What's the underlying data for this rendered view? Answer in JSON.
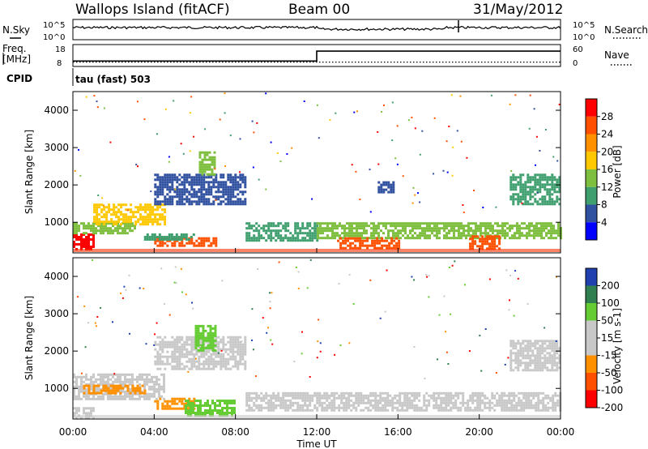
{
  "header": {
    "station": "Wallops Island (fitACF)",
    "beam": "Beam 00",
    "date": "31/May/2012"
  },
  "noise_panel": {
    "left_label": "N.Sky",
    "right_label": "N.Search",
    "left_ticks": [
      "10^5",
      "10^0"
    ],
    "right_ticks": [
      "10^5",
      "10^0"
    ]
  },
  "freq_panel": {
    "left_label_1": "Freq.",
    "left_label_2": "[MHz]",
    "right_label": "Nave",
    "left_ticks": [
      "18",
      "8"
    ],
    "right_ticks": [
      "60",
      "0"
    ],
    "freq_series": {
      "x_hours": [
        0,
        12,
        12,
        24
      ],
      "y_mhz": [
        10.5,
        10.5,
        15.0,
        15.0
      ]
    },
    "nave_series": {
      "x_hours": [
        0,
        24
      ],
      "y": [
        12,
        12
      ]
    }
  },
  "cpid": {
    "label": "CPID",
    "value": "tau (fast) 503"
  },
  "chart_data": [
    {
      "type": "heatmap",
      "name": "Power",
      "xlabel": "Time UT",
      "ylabel": "Slant Range [km]",
      "colorbar_label": "Power [dB]",
      "colorbar_ticks": [
        "28",
        "24",
        "20",
        "16",
        "12",
        "8",
        "4"
      ],
      "colorbar_colors": [
        "#ff0000",
        "#ff5000",
        "#ff9000",
        "#ffc800",
        "#7fbf3f",
        "#3f9f6f",
        "#3050a0",
        "#0000ff"
      ],
      "xlim_hours": [
        0,
        24
      ],
      "ylim_km": [
        180,
        4500
      ],
      "x_ticks": [
        "00:00",
        "04:00",
        "08:00",
        "12:00",
        "16:00",
        "20:00",
        "00:00"
      ],
      "y_ticks": [
        1000,
        2000,
        3000,
        4000
      ],
      "echo_regions": [
        {
          "t0": 0.0,
          "t1": 1.0,
          "r0": 250,
          "r1": 700,
          "level": 0
        },
        {
          "t0": 0.0,
          "t1": 3.0,
          "r0": 700,
          "r1": 1000,
          "level": 4
        },
        {
          "t0": 1.0,
          "t1": 4.5,
          "r0": 950,
          "r1": 1500,
          "level": 3
        },
        {
          "t0": 4.0,
          "t1": 7.0,
          "r0": 350,
          "r1": 600,
          "level": 1
        },
        {
          "t0": 3.5,
          "t1": 6.0,
          "r0": 550,
          "r1": 700,
          "level": 5
        },
        {
          "t0": 4.0,
          "t1": 8.5,
          "r0": 1500,
          "r1": 2300,
          "level": 6
        },
        {
          "t0": 6.2,
          "t1": 7.0,
          "r0": 2300,
          "r1": 2900,
          "level": 4
        },
        {
          "t0": 8.5,
          "t1": 12.0,
          "r0": 500,
          "r1": 1000,
          "level": 5
        },
        {
          "t0": 12.0,
          "t1": 24.0,
          "r0": 550,
          "r1": 1000,
          "level": 4
        },
        {
          "t0": 13.0,
          "t1": 16.0,
          "r0": 300,
          "r1": 600,
          "level": 1
        },
        {
          "t0": 19.5,
          "t1": 21.0,
          "r0": 300,
          "r1": 650,
          "level": 1
        },
        {
          "t0": 21.5,
          "t1": 24.0,
          "r0": 1500,
          "r1": 2300,
          "level": 5
        },
        {
          "t0": 15.0,
          "t1": 15.8,
          "r0": 1800,
          "r1": 2100,
          "level": 6
        }
      ]
    },
    {
      "type": "heatmap",
      "name": "Velocity",
      "xlabel": "Time UT",
      "ylabel": "Slant Range [km]",
      "colorbar_label": "Velocity [m s-1]",
      "colorbar_ticks": [
        "200",
        "100",
        "50",
        "15",
        "-15",
        "-50",
        "-100",
        "-200"
      ],
      "colorbar_colors": [
        "#2040b0",
        "#2f7f50",
        "#66cc33",
        "#c8c8c8",
        "#c8c8c8",
        "#ff9000",
        "#ff5000",
        "#ff0000"
      ],
      "xlim_hours": [
        0,
        24
      ],
      "ylim_km": [
        180,
        4500
      ],
      "x_ticks": [
        "00:00",
        "04:00",
        "08:00",
        "12:00",
        "16:00",
        "20:00",
        "00:00"
      ],
      "y_ticks": [
        1000,
        2000,
        3000,
        4000
      ],
      "echo_regions": [
        {
          "t0": 0.0,
          "t1": 4.5,
          "r0": 700,
          "r1": 1400,
          "color": "#c8c8c8"
        },
        {
          "t0": 0.5,
          "t1": 3.5,
          "r0": 900,
          "r1": 1100,
          "color": "#ff9000"
        },
        {
          "t0": 4.0,
          "t1": 6.0,
          "r0": 450,
          "r1": 750,
          "color": "#ff9000"
        },
        {
          "t0": 5.5,
          "t1": 8.0,
          "r0": 300,
          "r1": 700,
          "color": "#66cc33"
        },
        {
          "t0": 4.0,
          "t1": 8.5,
          "r0": 1500,
          "r1": 2400,
          "color": "#c8c8c8"
        },
        {
          "t0": 6.0,
          "t1": 7.0,
          "r0": 2000,
          "r1": 2700,
          "color": "#66cc33"
        },
        {
          "t0": 8.5,
          "t1": 24.0,
          "r0": 400,
          "r1": 900,
          "color": "#c8c8c8"
        },
        {
          "t0": 21.5,
          "t1": 24.0,
          "r0": 1500,
          "r1": 2300,
          "color": "#c8c8c8"
        },
        {
          "t0": 0.0,
          "t1": 1.0,
          "r0": 200,
          "r1": 500,
          "color": "#c8c8c8"
        }
      ]
    }
  ],
  "colors": {
    "frame": "#000000",
    "bottom_ground": "#c8c8c8"
  }
}
